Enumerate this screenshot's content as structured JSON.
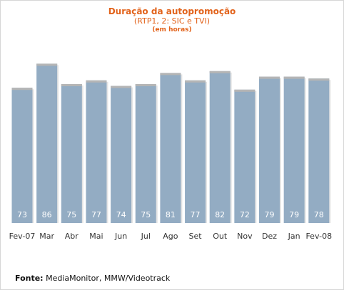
{
  "header": {
    "title": "Duração da autopromoção",
    "subtitle": "(RTP1, 2: SIC e TVI)",
    "unit": "(em horas)"
  },
  "footer": {
    "source_label": "Fonte:",
    "source_text": "MediaMonitor, MMW/Videotrack"
  },
  "colors": {
    "bar": "#93acc3",
    "bar_top": "#b5b5b5",
    "value_label": "#ffffff",
    "title": "#e2621a"
  },
  "chart_data": {
    "type": "bar",
    "title": "Duração da autopromoção",
    "subtitle": "(RTP1, 2: SIC e TVI)",
    "unit": "(em horas)",
    "categories": [
      "Fev-07",
      "Mar",
      "Abr",
      "Mai",
      "Jun",
      "Jul",
      "Ago",
      "Set",
      "Out",
      "Nov",
      "Dez",
      "Jan",
      "Fev-08"
    ],
    "values": [
      73,
      86,
      75,
      77,
      74,
      75,
      81,
      77,
      82,
      72,
      79,
      79,
      78
    ],
    "xlabel": "",
    "ylabel": "",
    "ylim": [
      0,
      100
    ],
    "grid": false,
    "legend": "none",
    "data_labels": "inside-bottom"
  }
}
